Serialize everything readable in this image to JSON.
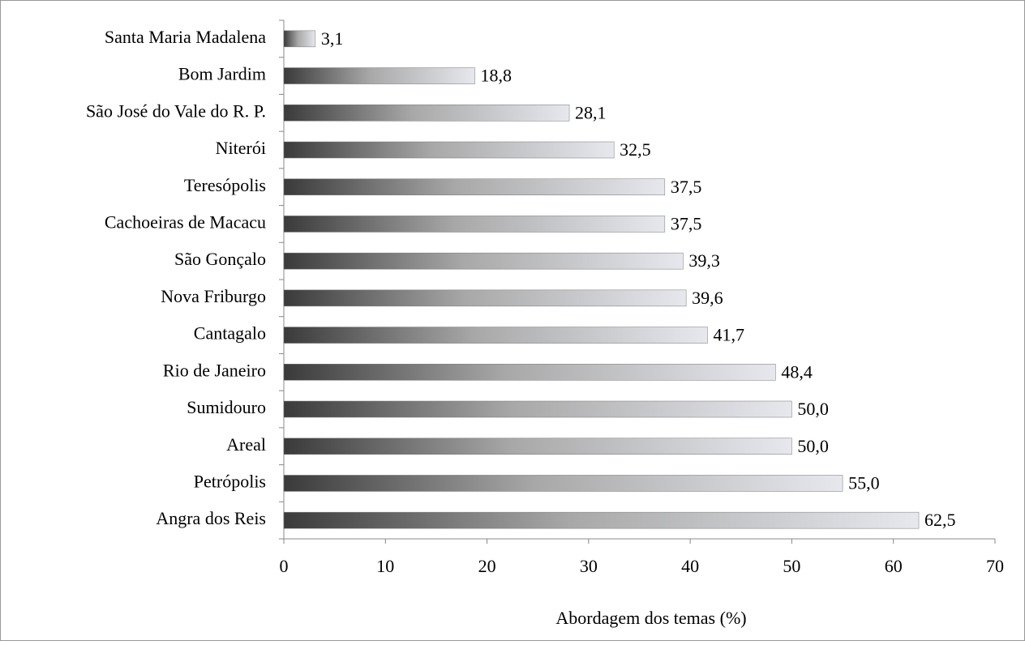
{
  "chart_data": {
    "type": "bar",
    "orientation": "horizontal",
    "categories": [
      "Santa Maria Madalena",
      "Bom Jardim",
      "São José do Vale do R. P.",
      "Niterói",
      "Teresópolis",
      "Cachoeiras de Macacu",
      "São Gonçalo",
      "Nova Friburgo",
      "Cantagalo",
      "Rio de Janeiro",
      "Sumidouro",
      "Areal",
      "Petrópolis",
      "Angra dos Reis"
    ],
    "values": [
      3.1,
      18.8,
      28.1,
      32.5,
      37.5,
      37.5,
      39.3,
      39.6,
      41.7,
      48.4,
      50.0,
      50.0,
      55.0,
      62.5
    ],
    "value_labels": [
      "3,1",
      "18,8",
      "28,1",
      "32,5",
      "37,5",
      "37,5",
      "39,3",
      "39,6",
      "41,7",
      "48,4",
      "50,0",
      "50,0",
      "55,0",
      "62,5"
    ],
    "xlabel": "Abordagem dos temas (%)",
    "xlim": [
      0,
      70
    ],
    "xticks": [
      0,
      10,
      20,
      30,
      40,
      50,
      60,
      70
    ],
    "color": "gradient-gray",
    "grid": false
  }
}
